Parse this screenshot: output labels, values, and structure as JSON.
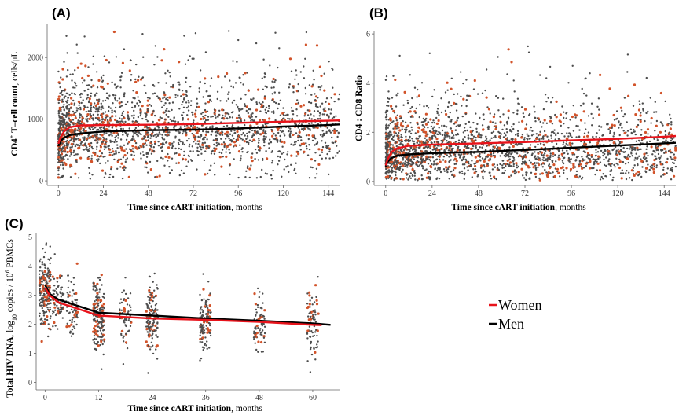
{
  "chart_data": [
    {
      "id": "A",
      "type": "scatter",
      "panel_label": "(A)",
      "xlabel_bold": "Time since cART initiation",
      "xlabel_rest": ", months",
      "ylabel_bold": "CD4",
      "ylabel_sup": "+",
      "ylabel_bold2": " T–cell count",
      "ylabel_rest": ",  cells/μL",
      "xlim": [
        -6,
        150
      ],
      "ylim": [
        -50,
        2550
      ],
      "xticks": [
        0,
        24,
        48,
        72,
        96,
        120,
        144
      ],
      "yticks": [
        0,
        1000,
        2000
      ],
      "ytick_labels": [
        "0",
        "1000",
        "2000"
      ],
      "scatter": {
        "x_max": 150,
        "center": 850,
        "spread": 330,
        "min": 30,
        "max": 2450,
        "n_men": 1900,
        "n_women": 420,
        "skew": 0.25
      },
      "series": [
        {
          "name": "Women",
          "color": "#e8131b",
          "points": [
            [
              0,
              600
            ],
            [
              1,
              700
            ],
            [
              3,
              800
            ],
            [
              6,
              870
            ],
            [
              12,
              900
            ],
            [
              24,
              905
            ],
            [
              48,
              910
            ],
            [
              72,
              920
            ],
            [
              96,
              940
            ],
            [
              120,
              960
            ],
            [
              144,
              975
            ],
            [
              150,
              980
            ]
          ]
        },
        {
          "name": "Men",
          "color": "#000000",
          "points": [
            [
              0,
              560
            ],
            [
              1,
              640
            ],
            [
              3,
              700
            ],
            [
              6,
              740
            ],
            [
              12,
              770
            ],
            [
              24,
              800
            ],
            [
              48,
              820
            ],
            [
              72,
              830
            ],
            [
              96,
              850
            ],
            [
              120,
              880
            ],
            [
              144,
              905
            ],
            [
              150,
              915
            ]
          ]
        }
      ]
    },
    {
      "id": "B",
      "type": "scatter",
      "panel_label": "(B)",
      "xlabel_bold": "Time since cART initiation",
      "xlabel_rest": ", months",
      "ylabel_bold": "CD4 : CD8 Ratio",
      "xlim": [
        -6,
        150
      ],
      "ylim": [
        -0.1,
        6.1
      ],
      "xticks": [
        0,
        24,
        48,
        72,
        96,
        120,
        144
      ],
      "yticks": [
        0,
        2,
        4,
        6
      ],
      "ytick_labels": [
        "0",
        "2",
        "4",
        "6"
      ],
      "scatter": {
        "x_max": 150,
        "center": 1.3,
        "spread": 0.6,
        "min": 0.05,
        "max": 5.5,
        "n_men": 1900,
        "n_women": 420,
        "skew": 0.45
      },
      "series": [
        {
          "name": "Women",
          "color": "#e8131b",
          "points": [
            [
              0,
              0.65
            ],
            [
              1,
              0.9
            ],
            [
              3,
              1.2
            ],
            [
              6,
              1.35
            ],
            [
              12,
              1.45
            ],
            [
              24,
              1.5
            ],
            [
              48,
              1.55
            ],
            [
              72,
              1.6
            ],
            [
              96,
              1.67
            ],
            [
              120,
              1.73
            ],
            [
              144,
              1.82
            ],
            [
              150,
              1.85
            ]
          ]
        },
        {
          "name": "Men",
          "color": "#000000",
          "points": [
            [
              0,
              0.6
            ],
            [
              1,
              0.8
            ],
            [
              3,
              0.95
            ],
            [
              6,
              1.05
            ],
            [
              12,
              1.1
            ],
            [
              24,
              1.15
            ],
            [
              48,
              1.2
            ],
            [
              72,
              1.28
            ],
            [
              96,
              1.37
            ],
            [
              120,
              1.46
            ],
            [
              144,
              1.55
            ],
            [
              150,
              1.57
            ]
          ]
        }
      ]
    },
    {
      "id": "C",
      "type": "scatter",
      "panel_label": "(C)",
      "xlabel_bold": "Time since cART initiation",
      "xlabel_rest": ", months",
      "ylabel_bold": "Total HIV DNA",
      "ylabel_rest1": ",  log",
      "ylabel_sub": "10",
      "ylabel_rest2": " copies / 10",
      "ylabel_sup": "6",
      "ylabel_rest3": " PBMCs",
      "xlim": [
        -2,
        66
      ],
      "ylim": [
        -0.2,
        5.15
      ],
      "xticks": [
        0,
        12,
        24,
        36,
        48,
        60
      ],
      "yticks": [
        0,
        1,
        2,
        3,
        4,
        5
      ],
      "ytick_labels": [
        "0",
        "1",
        "2",
        "3",
        "4",
        "5"
      ],
      "visit_groups": [
        {
          "x": 0,
          "center": 3.1,
          "spread": 0.6,
          "n_men": 160,
          "n_women": 45
        },
        {
          "x": 3,
          "center": 2.8,
          "spread": 0.45,
          "n_men": 60,
          "n_women": 14
        },
        {
          "x": 6,
          "center": 2.6,
          "spread": 0.45,
          "n_men": 55,
          "n_women": 12
        },
        {
          "x": 12,
          "center": 2.3,
          "spread": 0.6,
          "n_men": 140,
          "n_women": 40
        },
        {
          "x": 18,
          "center": 2.25,
          "spread": 0.55,
          "n_men": 50,
          "n_women": 10
        },
        {
          "x": 24,
          "center": 2.2,
          "spread": 0.6,
          "n_men": 120,
          "n_women": 30
        },
        {
          "x": 36,
          "center": 2.1,
          "spread": 0.6,
          "n_men": 95,
          "n_women": 20
        },
        {
          "x": 48,
          "center": 2.1,
          "spread": 0.5,
          "n_men": 65,
          "n_women": 14
        },
        {
          "x": 60,
          "center": 2.0,
          "spread": 0.6,
          "n_men": 60,
          "n_women": 18
        }
      ],
      "series": [
        {
          "name": "Women",
          "color": "#e8131b",
          "points": [
            [
              0,
              3.25
            ],
            [
              1,
              3.0
            ],
            [
              3,
              2.75
            ],
            [
              6,
              2.6
            ],
            [
              12,
              2.3
            ],
            [
              24,
              2.2
            ],
            [
              36,
              2.15
            ],
            [
              48,
              2.08
            ],
            [
              60,
              1.98
            ],
            [
              62,
              1.97
            ]
          ]
        },
        {
          "name": "Men",
          "color": "#000000",
          "points": [
            [
              0,
              3.35
            ],
            [
              1,
              3.05
            ],
            [
              3,
              2.85
            ],
            [
              6,
              2.7
            ],
            [
              12,
              2.4
            ],
            [
              24,
              2.3
            ],
            [
              36,
              2.2
            ],
            [
              48,
              2.12
            ],
            [
              60,
              2.03
            ],
            [
              64,
              1.98
            ]
          ]
        }
      ]
    }
  ],
  "legend": [
    {
      "label": "Women",
      "color": "#e8131b"
    },
    {
      "label": "Men",
      "color": "#000000"
    }
  ],
  "colors": {
    "men_points": "#4d4d4d",
    "women_points": "#d2532a"
  }
}
